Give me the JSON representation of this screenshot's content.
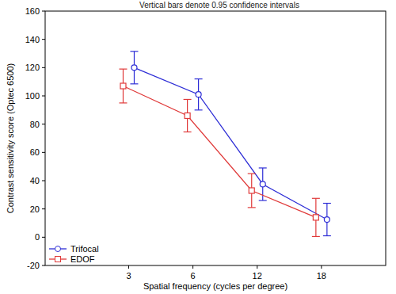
{
  "chart_data": {
    "type": "line",
    "title": "Vertical bars denote 0.95 confidence intervals",
    "x_label": "Spatial frequency (cycles per degree)",
    "y_label": "Contrast sensitivity score (Optec 6500)",
    "categories": [
      "3",
      "6",
      "12",
      "18"
    ],
    "series": [
      {
        "name": "Trifocal",
        "color": "#2e2ed6",
        "marker": "circle",
        "line_style": "solid",
        "values": [
          120,
          101,
          37.5,
          12.5
        ],
        "errors": [
          11.5,
          11,
          11.5,
          11.5
        ]
      },
      {
        "name": "EDOF",
        "color": "#e03a3a",
        "marker": "square",
        "line_style": "solid",
        "values": [
          107,
          86,
          33,
          14
        ],
        "errors": [
          12,
          11.5,
          12,
          13.5
        ]
      }
    ],
    "ylim": [
      -20,
      160
    ],
    "yticks": [
      -20,
      0,
      20,
      40,
      60,
      80,
      100,
      120,
      140,
      160
    ],
    "grid": false,
    "legend": "lower left"
  }
}
